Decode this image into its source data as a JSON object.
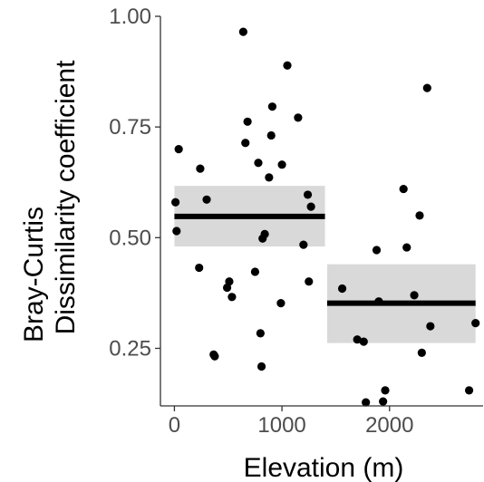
{
  "chart_data": {
    "type": "scatter",
    "title": "",
    "xlabel": "Elevation (m)",
    "ylabel_lines": [
      "Bray-Curtis",
      "Dissimilarity coefficient"
    ],
    "xlim": [
      -130,
      2870
    ],
    "ylim": [
      0.12,
      1.0
    ],
    "x_ticks": [
      {
        "value": 0,
        "label": "0"
      },
      {
        "value": 1000,
        "label": "1000"
      },
      {
        "value": 2000,
        "label": "2000"
      }
    ],
    "y_ticks": [
      {
        "value": 0.25,
        "label": "0.25"
      },
      {
        "value": 0.5,
        "label": "0.50"
      },
      {
        "value": 0.75,
        "label": "0.75"
      },
      {
        "value": 1.0,
        "label": "1.00"
      }
    ],
    "grid": false,
    "colors": {
      "points": "#000000",
      "band": "#d9d9d9",
      "mean_line": "#000000",
      "axis": "#333333"
    },
    "segments": [
      {
        "x_start": 0,
        "x_end": 1400,
        "mean": 0.548,
        "ci_low": 0.48,
        "ci_high": 0.617
      },
      {
        "x_start": 1420,
        "x_end": 2800,
        "mean": 0.352,
        "ci_low": 0.262,
        "ci_high": 0.44
      }
    ],
    "points": [
      {
        "x": 10,
        "y": 0.58
      },
      {
        "x": 20,
        "y": 0.515
      },
      {
        "x": 40,
        "y": 0.7
      },
      {
        "x": 230,
        "y": 0.432
      },
      {
        "x": 240,
        "y": 0.656
      },
      {
        "x": 300,
        "y": 0.586
      },
      {
        "x": 365,
        "y": 0.236
      },
      {
        "x": 375,
        "y": 0.232
      },
      {
        "x": 490,
        "y": 0.387
      },
      {
        "x": 510,
        "y": 0.401
      },
      {
        "x": 535,
        "y": 0.366
      },
      {
        "x": 640,
        "y": 0.965
      },
      {
        "x": 660,
        "y": 0.714
      },
      {
        "x": 680,
        "y": 0.762
      },
      {
        "x": 750,
        "y": 0.423
      },
      {
        "x": 780,
        "y": 0.669
      },
      {
        "x": 800,
        "y": 0.284
      },
      {
        "x": 810,
        "y": 0.209
      },
      {
        "x": 820,
        "y": 0.498
      },
      {
        "x": 840,
        "y": 0.508
      },
      {
        "x": 880,
        "y": 0.636
      },
      {
        "x": 900,
        "y": 0.731
      },
      {
        "x": 910,
        "y": 0.796
      },
      {
        "x": 990,
        "y": 0.352
      },
      {
        "x": 1000,
        "y": 0.665
      },
      {
        "x": 1050,
        "y": 0.889
      },
      {
        "x": 1150,
        "y": 0.771
      },
      {
        "x": 1200,
        "y": 0.484
      },
      {
        "x": 1240,
        "y": 0.597
      },
      {
        "x": 1250,
        "y": 0.401
      },
      {
        "x": 1270,
        "y": 0.57
      },
      {
        "x": 1560,
        "y": 0.385
      },
      {
        "x": 1700,
        "y": 0.27
      },
      {
        "x": 1760,
        "y": 0.265
      },
      {
        "x": 1780,
        "y": 0.128
      },
      {
        "x": 1880,
        "y": 0.472
      },
      {
        "x": 1900,
        "y": 0.356
      },
      {
        "x": 1940,
        "y": 0.13
      },
      {
        "x": 1960,
        "y": 0.155
      },
      {
        "x": 2130,
        "y": 0.61
      },
      {
        "x": 2160,
        "y": 0.478
      },
      {
        "x": 2230,
        "y": 0.37
      },
      {
        "x": 2280,
        "y": 0.55
      },
      {
        "x": 2300,
        "y": 0.24
      },
      {
        "x": 2350,
        "y": 0.838
      },
      {
        "x": 2380,
        "y": 0.3
      },
      {
        "x": 2740,
        "y": 0.155
      },
      {
        "x": 2800,
        "y": 0.307
      }
    ]
  }
}
